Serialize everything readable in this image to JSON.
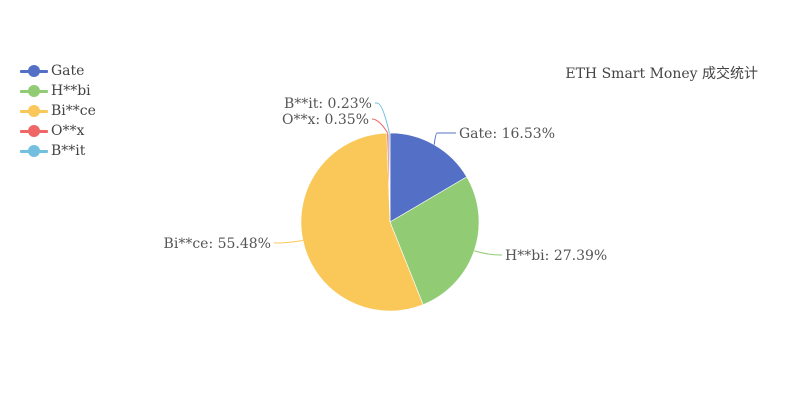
{
  "chart_data": {
    "type": "pie",
    "title": "ETH Smart Money 成交统计",
    "legend_position": "top-left",
    "slices": [
      {
        "name": "Gate",
        "value": 16.53,
        "label": "Gate: 16.53%",
        "color": "#5470c6"
      },
      {
        "name": "H**bi",
        "value": 27.39,
        "label": "H**bi: 27.39%",
        "color": "#91cc75"
      },
      {
        "name": "Bi**ce",
        "value": 55.48,
        "label": "Bi**ce: 55.48%",
        "color": "#fac858"
      },
      {
        "name": "O**x",
        "value": 0.35,
        "label": "O**x: 0.35%",
        "color": "#ee6666"
      },
      {
        "name": "B**it",
        "value": 0.23,
        "label": "B**it: 0.23%",
        "color": "#73c0de"
      }
    ]
  }
}
